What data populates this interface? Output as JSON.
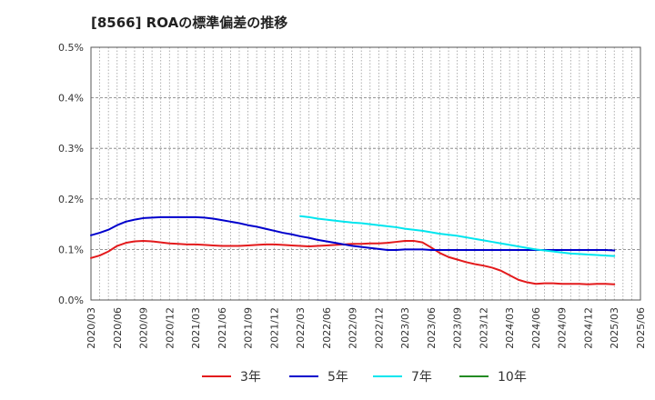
{
  "chart_data": {
    "type": "line",
    "title": "[8566]  ROAの標準偏差の推移",
    "xlabel": "",
    "ylabel": "",
    "ylim": [
      0,
      0.5
    ],
    "y_ticks": [
      "0.0%",
      "0.1%",
      "0.2%",
      "0.3%",
      "0.4%",
      "0.5%"
    ],
    "y_tick_values": [
      0,
      0.1,
      0.2,
      0.3,
      0.4,
      0.5
    ],
    "x_ticks": [
      "2020/03",
      "2020/06",
      "2020/09",
      "2020/12",
      "2021/03",
      "2021/06",
      "2021/09",
      "2021/12",
      "2022/03",
      "2022/06",
      "2022/09",
      "2022/12",
      "2023/03",
      "2023/06",
      "2023/09",
      "2023/12",
      "2024/03",
      "2024/06",
      "2024/09",
      "2024/12",
      "2025/03",
      "2025/06"
    ],
    "grid": true,
    "legend_position": "bottom",
    "series": [
      {
        "name": "3年",
        "color": "#e31a1c",
        "x": [
          "2020/03",
          "2020/04",
          "2020/05",
          "2020/06",
          "2020/07",
          "2020/08",
          "2020/09",
          "2020/10",
          "2020/11",
          "2020/12",
          "2021/01",
          "2021/02",
          "2021/03",
          "2021/04",
          "2021/05",
          "2021/06",
          "2021/07",
          "2021/08",
          "2021/09",
          "2021/10",
          "2021/11",
          "2021/12",
          "2022/01",
          "2022/02",
          "2022/03",
          "2022/04",
          "2022/05",
          "2022/06",
          "2022/07",
          "2022/08",
          "2022/09",
          "2022/10",
          "2022/11",
          "2022/12",
          "2023/01",
          "2023/02",
          "2023/03",
          "2023/04",
          "2023/05",
          "2023/06",
          "2023/07",
          "2023/08",
          "2023/09",
          "2023/10",
          "2023/11",
          "2023/12",
          "2024/01",
          "2024/02",
          "2024/03",
          "2024/04",
          "2024/05",
          "2024/06",
          "2024/07",
          "2024/08",
          "2024/09",
          "2024/10",
          "2024/11",
          "2024/12",
          "2025/01",
          "2025/02",
          "2025/03"
        ],
        "values": [
          0.083,
          0.088,
          0.096,
          0.107,
          0.113,
          0.116,
          0.117,
          0.116,
          0.114,
          0.112,
          0.111,
          0.11,
          0.11,
          0.109,
          0.108,
          0.107,
          0.107,
          0.107,
          0.108,
          0.109,
          0.11,
          0.11,
          0.109,
          0.108,
          0.107,
          0.106,
          0.107,
          0.108,
          0.109,
          0.11,
          0.111,
          0.111,
          0.112,
          0.112,
          0.113,
          0.115,
          0.117,
          0.117,
          0.114,
          0.104,
          0.093,
          0.085,
          0.08,
          0.075,
          0.071,
          0.068,
          0.064,
          0.058,
          0.049,
          0.04,
          0.035,
          0.032,
          0.033,
          0.033,
          0.032,
          0.032,
          0.032,
          0.031,
          0.032,
          0.032,
          0.031
        ]
      },
      {
        "name": "5年",
        "color": "#0000cc",
        "x": [
          "2020/03",
          "2020/04",
          "2020/05",
          "2020/06",
          "2020/07",
          "2020/08",
          "2020/09",
          "2020/10",
          "2020/11",
          "2020/12",
          "2021/01",
          "2021/02",
          "2021/03",
          "2021/04",
          "2021/05",
          "2021/06",
          "2021/07",
          "2021/08",
          "2021/09",
          "2021/10",
          "2021/11",
          "2021/12",
          "2022/01",
          "2022/02",
          "2022/03",
          "2022/04",
          "2022/05",
          "2022/06",
          "2022/07",
          "2022/08",
          "2022/09",
          "2022/10",
          "2022/11",
          "2022/12",
          "2023/01",
          "2023/02",
          "2023/03",
          "2023/04",
          "2023/05",
          "2023/06",
          "2023/07",
          "2023/08",
          "2023/09",
          "2023/10",
          "2023/11",
          "2023/12",
          "2024/01",
          "2024/02",
          "2024/03",
          "2024/04",
          "2024/05",
          "2024/06",
          "2024/07",
          "2024/08",
          "2024/09",
          "2024/10",
          "2024/11",
          "2024/12",
          "2025/01",
          "2025/02",
          "2025/03"
        ],
        "values": [
          0.128,
          0.133,
          0.139,
          0.148,
          0.155,
          0.159,
          0.162,
          0.163,
          0.164,
          0.164,
          0.164,
          0.164,
          0.164,
          0.163,
          0.161,
          0.158,
          0.155,
          0.152,
          0.148,
          0.145,
          0.141,
          0.137,
          0.133,
          0.13,
          0.126,
          0.123,
          0.119,
          0.116,
          0.113,
          0.11,
          0.107,
          0.105,
          0.103,
          0.101,
          0.099,
          0.099,
          0.1,
          0.1,
          0.1,
          0.099,
          0.099,
          0.099,
          0.099,
          0.099,
          0.099,
          0.099,
          0.099,
          0.099,
          0.099,
          0.099,
          0.099,
          0.099,
          0.099,
          0.099,
          0.099,
          0.099,
          0.099,
          0.099,
          0.099,
          0.099,
          0.098
        ]
      },
      {
        "name": "7年",
        "color": "#00e5ee",
        "x": [
          "2022/03",
          "2022/04",
          "2022/05",
          "2022/06",
          "2022/07",
          "2022/08",
          "2022/09",
          "2022/10",
          "2022/11",
          "2022/12",
          "2023/01",
          "2023/02",
          "2023/03",
          "2023/04",
          "2023/05",
          "2023/06",
          "2023/07",
          "2023/08",
          "2023/09",
          "2023/10",
          "2023/11",
          "2023/12",
          "2024/01",
          "2024/02",
          "2024/03",
          "2024/04",
          "2024/05",
          "2024/06",
          "2024/07",
          "2024/08",
          "2024/09",
          "2024/10",
          "2024/11",
          "2024/12",
          "2025/01",
          "2025/02",
          "2025/03"
        ],
        "values": [
          0.166,
          0.164,
          0.161,
          0.159,
          0.157,
          0.155,
          0.153,
          0.152,
          0.15,
          0.148,
          0.146,
          0.144,
          0.141,
          0.139,
          0.137,
          0.134,
          0.131,
          0.129,
          0.127,
          0.124,
          0.121,
          0.118,
          0.115,
          0.112,
          0.109,
          0.106,
          0.103,
          0.1,
          0.098,
          0.096,
          0.094,
          0.092,
          0.091,
          0.09,
          0.089,
          0.088,
          0.087
        ]
      },
      {
        "name": "10年",
        "color": "#228b22",
        "x": [],
        "values": []
      }
    ]
  }
}
